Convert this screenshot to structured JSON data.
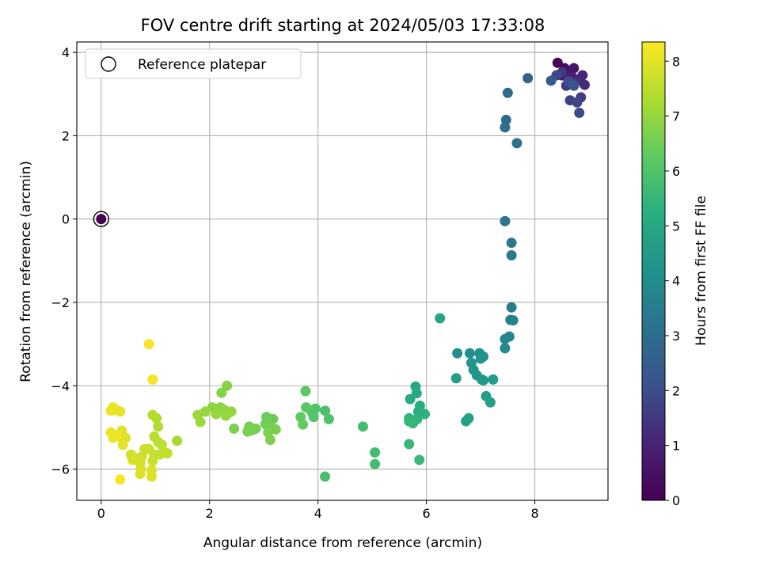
{
  "chart_data": {
    "type": "scatter",
    "title": "FOV centre drift starting at 2024/05/03 17:33:08",
    "xlabel": "Angular distance from reference (arcmin)",
    "ylabel": "Rotation from reference (arcmin)",
    "xlim": [
      -0.45,
      9.35
    ],
    "ylim": [
      -6.75,
      4.25
    ],
    "x_ticks": [
      0,
      2,
      4,
      6,
      8
    ],
    "y_ticks": [
      -6,
      -4,
      -2,
      0,
      2,
      4
    ],
    "x_tick_labels": [
      "0",
      "2",
      "4",
      "6",
      "8"
    ],
    "y_tick_labels": [
      "−6",
      "−4",
      "−2",
      "0",
      "2",
      "4"
    ],
    "grid": true,
    "legend": {
      "placement": "top-left",
      "entries": [
        "Reference platepar"
      ]
    },
    "reference_point": {
      "x": 0,
      "y": 0,
      "c": 0
    },
    "colorbar": {
      "label": "Hours from first FF file",
      "cmap": "viridis",
      "min": 0,
      "max": 8.35,
      "ticks": [
        0,
        1,
        2,
        3,
        4,
        5,
        6,
        7,
        8
      ],
      "tick_labels": [
        "0",
        "1",
        "2",
        "3",
        "4",
        "5",
        "6",
        "7",
        "8"
      ]
    },
    "points": [
      {
        "x": 8.42,
        "y": 3.75,
        "c": 0.1
      },
      {
        "x": 8.55,
        "y": 3.62,
        "c": 0.3
      },
      {
        "x": 8.62,
        "y": 3.55,
        "c": 0.5
      },
      {
        "x": 8.72,
        "y": 3.62,
        "c": 0.6
      },
      {
        "x": 8.5,
        "y": 3.45,
        "c": 0.8
      },
      {
        "x": 8.68,
        "y": 3.42,
        "c": 0.9
      },
      {
        "x": 8.8,
        "y": 3.35,
        "c": 1.0
      },
      {
        "x": 8.88,
        "y": 3.45,
        "c": 1.1
      },
      {
        "x": 8.92,
        "y": 3.22,
        "c": 1.2
      },
      {
        "x": 8.65,
        "y": 3.3,
        "c": 1.3
      },
      {
        "x": 8.75,
        "y": 3.28,
        "c": 1.4
      },
      {
        "x": 8.58,
        "y": 3.2,
        "c": 1.5
      },
      {
        "x": 8.85,
        "y": 2.92,
        "c": 1.6
      },
      {
        "x": 8.65,
        "y": 2.85,
        "c": 1.7
      },
      {
        "x": 8.78,
        "y": 2.8,
        "c": 1.8
      },
      {
        "x": 8.82,
        "y": 2.55,
        "c": 1.9
      },
      {
        "x": 8.5,
        "y": 3.52,
        "c": 1.5
      },
      {
        "x": 8.4,
        "y": 3.45,
        "c": 1.8
      },
      {
        "x": 8.62,
        "y": 3.3,
        "c": 2.0
      },
      {
        "x": 8.72,
        "y": 3.2,
        "c": 2.2
      },
      {
        "x": 8.3,
        "y": 3.32,
        "c": 2.4
      },
      {
        "x": 7.87,
        "y": 3.38,
        "c": 2.6
      },
      {
        "x": 7.5,
        "y": 3.03,
        "c": 2.8
      },
      {
        "x": 7.47,
        "y": 2.38,
        "c": 2.9
      },
      {
        "x": 7.45,
        "y": 2.2,
        "c": 3.0
      },
      {
        "x": 7.67,
        "y": 1.82,
        "c": 3.1
      },
      {
        "x": 7.45,
        "y": -0.05,
        "c": 3.2
      },
      {
        "x": 7.57,
        "y": -0.57,
        "c": 3.3
      },
      {
        "x": 7.57,
        "y": -0.87,
        "c": 3.4
      },
      {
        "x": 7.57,
        "y": -2.12,
        "c": 3.5
      },
      {
        "x": 7.55,
        "y": -2.42,
        "c": 3.55
      },
      {
        "x": 7.6,
        "y": -2.43,
        "c": 3.6
      },
      {
        "x": 7.53,
        "y": -2.82,
        "c": 3.7
      },
      {
        "x": 7.45,
        "y": -2.88,
        "c": 3.8
      },
      {
        "x": 7.45,
        "y": -3.1,
        "c": 3.9
      },
      {
        "x": 6.57,
        "y": -3.22,
        "c": 4.0
      },
      {
        "x": 6.8,
        "y": -3.22,
        "c": 4.1
      },
      {
        "x": 6.98,
        "y": -3.22,
        "c": 4.15
      },
      {
        "x": 7.05,
        "y": -3.3,
        "c": 4.2
      },
      {
        "x": 7.0,
        "y": -3.35,
        "c": 4.25
      },
      {
        "x": 6.83,
        "y": -3.45,
        "c": 4.3
      },
      {
        "x": 6.87,
        "y": -3.62,
        "c": 4.35
      },
      {
        "x": 6.93,
        "y": -3.75,
        "c": 4.4
      },
      {
        "x": 7.02,
        "y": -3.85,
        "c": 4.45
      },
      {
        "x": 7.05,
        "y": -3.87,
        "c": 4.5
      },
      {
        "x": 7.23,
        "y": -3.85,
        "c": 4.55
      },
      {
        "x": 6.55,
        "y": -3.82,
        "c": 4.6
      },
      {
        "x": 7.1,
        "y": -4.25,
        "c": 4.65
      },
      {
        "x": 7.18,
        "y": -4.4,
        "c": 4.7
      },
      {
        "x": 6.78,
        "y": -4.78,
        "c": 4.75
      },
      {
        "x": 6.73,
        "y": -4.85,
        "c": 4.8
      },
      {
        "x": 6.25,
        "y": -2.38,
        "c": 4.9
      },
      {
        "x": 5.8,
        "y": -4.02,
        "c": 5.0
      },
      {
        "x": 5.82,
        "y": -4.18,
        "c": 5.05
      },
      {
        "x": 5.7,
        "y": -4.32,
        "c": 5.1
      },
      {
        "x": 5.88,
        "y": -4.48,
        "c": 5.15
      },
      {
        "x": 5.85,
        "y": -4.62,
        "c": 5.2
      },
      {
        "x": 5.92,
        "y": -4.68,
        "c": 5.25
      },
      {
        "x": 5.97,
        "y": -4.68,
        "c": 5.3
      },
      {
        "x": 5.68,
        "y": -4.78,
        "c": 5.35
      },
      {
        "x": 5.83,
        "y": -4.8,
        "c": 5.4
      },
      {
        "x": 5.75,
        "y": -4.9,
        "c": 5.45
      },
      {
        "x": 5.68,
        "y": -4.85,
        "c": 5.5
      },
      {
        "x": 5.68,
        "y": -5.4,
        "c": 5.55
      },
      {
        "x": 5.87,
        "y": -5.78,
        "c": 5.6
      },
      {
        "x": 5.05,
        "y": -5.6,
        "c": 5.7
      },
      {
        "x": 5.05,
        "y": -5.88,
        "c": 5.75
      },
      {
        "x": 4.83,
        "y": -4.98,
        "c": 5.8
      },
      {
        "x": 4.13,
        "y": -6.18,
        "c": 5.85
      },
      {
        "x": 4.13,
        "y": -4.6,
        "c": 5.9
      },
      {
        "x": 4.2,
        "y": -4.8,
        "c": 5.95
      },
      {
        "x": 3.95,
        "y": -4.55,
        "c": 6.0
      },
      {
        "x": 3.88,
        "y": -4.62,
        "c": 6.05
      },
      {
        "x": 3.92,
        "y": -4.75,
        "c": 6.1
      },
      {
        "x": 3.78,
        "y": -4.52,
        "c": 6.15
      },
      {
        "x": 3.77,
        "y": -4.13,
        "c": 6.2
      },
      {
        "x": 3.68,
        "y": -4.75,
        "c": 6.25
      },
      {
        "x": 3.72,
        "y": -4.93,
        "c": 6.3
      },
      {
        "x": 3.05,
        "y": -4.75,
        "c": 6.35
      },
      {
        "x": 3.1,
        "y": -4.82,
        "c": 6.4
      },
      {
        "x": 3.17,
        "y": -4.8,
        "c": 6.45
      },
      {
        "x": 3.03,
        "y": -4.92,
        "c": 6.5
      },
      {
        "x": 3.13,
        "y": -5.0,
        "c": 6.55
      },
      {
        "x": 3.22,
        "y": -5.05,
        "c": 6.6
      },
      {
        "x": 3.08,
        "y": -5.12,
        "c": 6.65
      },
      {
        "x": 3.12,
        "y": -5.3,
        "c": 6.7
      },
      {
        "x": 2.85,
        "y": -5.03,
        "c": 6.55
      },
      {
        "x": 2.78,
        "y": -5.07,
        "c": 6.6
      },
      {
        "x": 2.7,
        "y": -5.1,
        "c": 6.65
      },
      {
        "x": 2.73,
        "y": -4.98,
        "c": 6.6
      },
      {
        "x": 2.45,
        "y": -5.03,
        "c": 6.7
      },
      {
        "x": 2.22,
        "y": -4.17,
        "c": 6.75
      },
      {
        "x": 2.32,
        "y": -4.0,
        "c": 6.8
      },
      {
        "x": 2.05,
        "y": -4.52,
        "c": 6.85
      },
      {
        "x": 2.2,
        "y": -4.52,
        "c": 6.9
      },
      {
        "x": 2.27,
        "y": -4.58,
        "c": 6.92
      },
      {
        "x": 2.35,
        "y": -4.65,
        "c": 6.95
      },
      {
        "x": 2.4,
        "y": -4.62,
        "c": 6.97
      },
      {
        "x": 2.12,
        "y": -4.68,
        "c": 7.0
      },
      {
        "x": 2.3,
        "y": -4.72,
        "c": 7.02
      },
      {
        "x": 1.92,
        "y": -4.62,
        "c": 7.05
      },
      {
        "x": 1.78,
        "y": -4.7,
        "c": 7.07
      },
      {
        "x": 1.83,
        "y": -4.87,
        "c": 7.1
      },
      {
        "x": 1.4,
        "y": -5.32,
        "c": 7.2
      },
      {
        "x": 1.02,
        "y": -4.78,
        "c": 7.3
      },
      {
        "x": 1.05,
        "y": -4.98,
        "c": 7.35
      },
      {
        "x": 0.95,
        "y": -4.7,
        "c": 7.4
      },
      {
        "x": 0.98,
        "y": -5.22,
        "c": 7.45
      },
      {
        "x": 1.05,
        "y": -5.35,
        "c": 7.5
      },
      {
        "x": 1.12,
        "y": -5.42,
        "c": 7.5
      },
      {
        "x": 1.15,
        "y": -5.6,
        "c": 7.55
      },
      {
        "x": 1.22,
        "y": -5.62,
        "c": 7.55
      },
      {
        "x": 1.08,
        "y": -5.65,
        "c": 7.6
      },
      {
        "x": 0.98,
        "y": -5.65,
        "c": 7.6
      },
      {
        "x": 0.95,
        "y": -5.8,
        "c": 7.65
      },
      {
        "x": 0.88,
        "y": -5.52,
        "c": 7.65
      },
      {
        "x": 0.8,
        "y": -5.52,
        "c": 7.7
      },
      {
        "x": 0.75,
        "y": -5.7,
        "c": 7.7
      },
      {
        "x": 0.72,
        "y": -5.85,
        "c": 7.75
      },
      {
        "x": 0.68,
        "y": -5.78,
        "c": 7.75
      },
      {
        "x": 0.6,
        "y": -5.72,
        "c": 7.8
      },
      {
        "x": 0.55,
        "y": -5.65,
        "c": 7.8
      },
      {
        "x": 0.58,
        "y": -5.78,
        "c": 7.85
      },
      {
        "x": 0.73,
        "y": -6.0,
        "c": 7.85
      },
      {
        "x": 0.72,
        "y": -6.12,
        "c": 7.9
      },
      {
        "x": 0.93,
        "y": -6.02,
        "c": 7.9
      },
      {
        "x": 0.93,
        "y": -6.18,
        "c": 7.92
      },
      {
        "x": 0.45,
        "y": -5.25,
        "c": 7.95
      },
      {
        "x": 0.38,
        "y": -5.08,
        "c": 7.95
      },
      {
        "x": 0.35,
        "y": -5.22,
        "c": 8.0
      },
      {
        "x": 0.4,
        "y": -5.42,
        "c": 8.0
      },
      {
        "x": 0.35,
        "y": -4.62,
        "c": 8.05
      },
      {
        "x": 0.28,
        "y": -4.58,
        "c": 8.05
      },
      {
        "x": 0.22,
        "y": -4.52,
        "c": 8.1
      },
      {
        "x": 0.18,
        "y": -4.6,
        "c": 8.1
      },
      {
        "x": 0.18,
        "y": -5.12,
        "c": 8.12
      },
      {
        "x": 0.22,
        "y": -5.25,
        "c": 8.15
      },
      {
        "x": 0.28,
        "y": -5.2,
        "c": 8.15
      },
      {
        "x": 0.95,
        "y": -3.85,
        "c": 8.2
      },
      {
        "x": 0.88,
        "y": -3.0,
        "c": 8.3
      },
      {
        "x": 0.35,
        "y": -6.25,
        "c": 8.25
      }
    ]
  }
}
